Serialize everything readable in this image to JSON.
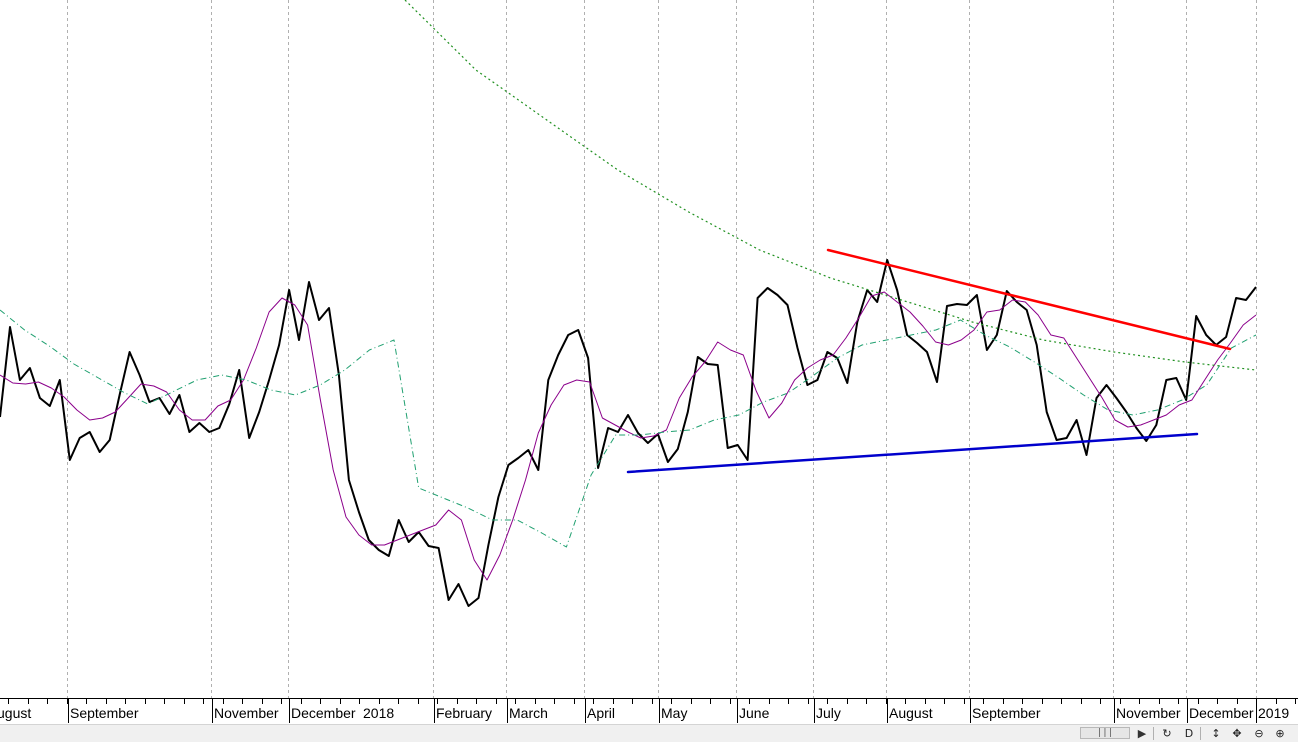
{
  "chart_data": {
    "type": "line",
    "x_axis": {
      "labels": [
        "ugust",
        "September",
        "November",
        "December",
        "2018",
        "February",
        "March",
        "April",
        "May",
        "June",
        "July",
        "August",
        "September",
        "November",
        "December",
        "2019"
      ]
    },
    "grid": "vertical dashed lines at month boundaries",
    "series": [
      {
        "role": "price",
        "color": "#000000",
        "style": "solid thick",
        "values": [
          417,
          327,
          380,
          368,
          398,
          406,
          380,
          460,
          438,
          432,
          452,
          440,
          395,
          352,
          375,
          402,
          398,
          414,
          395,
          432,
          423,
          432,
          428,
          404,
          370,
          438,
          412,
          380,
          345,
          290,
          340,
          282,
          320,
          308,
          375,
          480,
          512,
          540,
          550,
          556,
          520,
          542,
          532,
          546,
          548,
          600,
          584,
          606,
          598,
          545,
          497,
          465,
          458,
          450,
          470,
          380,
          355,
          335,
          330,
          358,
          468,
          428,
          432,
          415,
          433,
          443,
          434,
          462,
          449,
          412,
          357,
          364,
          365,
          448,
          445,
          460,
          298,
          288,
          295,
          305,
          348,
          385,
          380,
          352,
          358,
          383,
          322,
          290,
          302,
          260,
          290,
          335,
          343,
          352,
          382,
          306,
          304,
          305,
          295,
          350,
          335,
          291,
          302,
          310,
          345,
          412,
          440,
          438,
          420,
          455,
          398,
          385,
          398,
          412,
          428,
          441,
          425,
          380,
          378,
          400,
          316,
          335,
          345,
          337,
          298,
          300,
          287
        ]
      },
      {
        "role": "fast moving average",
        "color": "#8b008b",
        "style": "solid thin",
        "values": [
          375,
          383,
          384,
          382,
          388,
          397,
          410,
          420,
          418,
          412,
          398,
          384,
          386,
          392,
          410,
          420,
          420,
          406,
          400,
          380,
          348,
          312,
          298,
          305,
          325,
          400,
          470,
          517,
          535,
          545,
          545,
          540,
          535,
          530,
          525,
          510,
          520,
          560,
          580,
          555,
          520,
          480,
          433,
          405,
          385,
          380,
          382,
          418,
          425,
          432,
          438,
          436,
          430,
          398,
          377,
          362,
          342,
          350,
          355,
          391,
          418,
          403,
          380,
          368,
          360,
          355,
          338,
          318,
          296,
          292,
          302,
          312,
          326,
          342,
          345,
          340,
          330,
          312,
          310,
          300,
          302,
          315,
          335,
          338,
          358,
          378,
          398,
          420,
          427,
          425,
          420,
          415,
          405,
          400,
          380,
          360,
          343,
          325,
          315
        ]
      },
      {
        "role": "medium moving average",
        "color": "#20a070",
        "style": "dash-dot thin",
        "values": [
          310,
          330,
          346,
          364,
          378,
          392,
          404,
          392,
          380,
          375,
          380,
          390,
          395,
          385,
          370,
          350,
          340,
          488,
          498,
          508,
          520,
          520,
          533,
          547,
          475,
          435,
          435,
          432,
          430,
          420,
          415,
          402,
          393,
          376,
          358,
          345,
          340,
          335,
          330,
          320,
          335,
          347,
          362,
          378,
          395,
          410,
          415,
          410,
          400,
          385,
          348,
          335
        ]
      },
      {
        "role": "long trend curve",
        "color": "#209020",
        "style": "dotted thin",
        "values": [
          0,
          70,
          120,
          170,
          212,
          250,
          278,
          300,
          322,
          340,
          352,
          362,
          370
        ]
      }
    ],
    "trendlines": [
      {
        "name": "resistance",
        "color": "#ff0000"
      },
      {
        "name": "support",
        "color": "#0000cc"
      }
    ]
  }
}
